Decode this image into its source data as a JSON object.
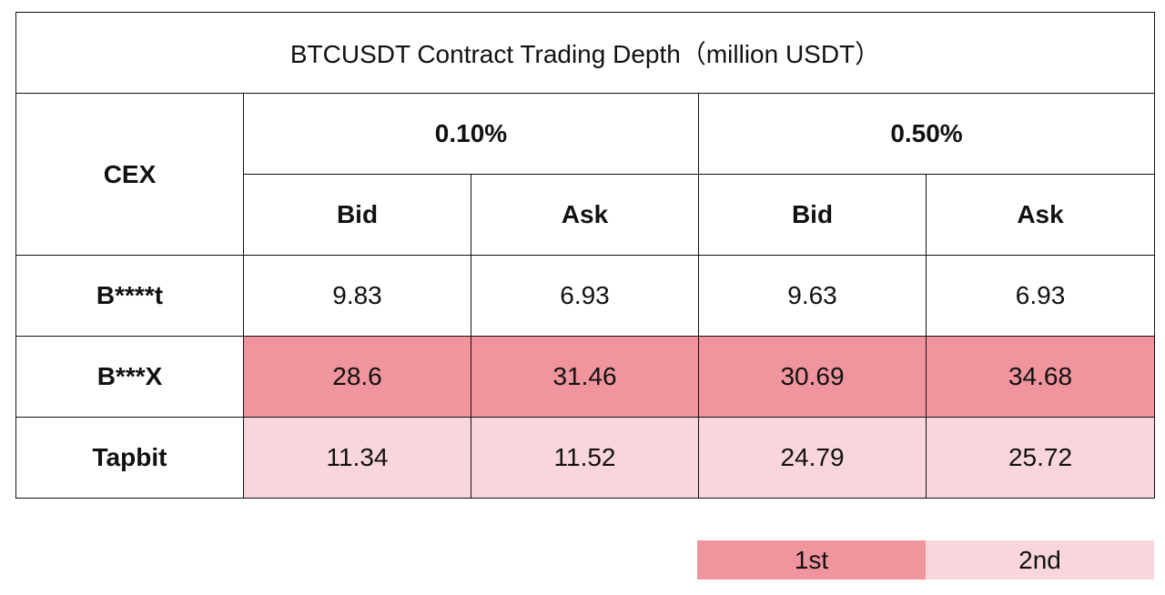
{
  "chart_data": {
    "type": "table",
    "title": "BTCUSDT Contract Trading Depth（million USDT）",
    "header": {
      "first_col": "CEX",
      "groups": [
        "0.10%",
        "0.50%"
      ],
      "subcols": [
        "Bid",
        "Ask",
        "Bid",
        "Ask"
      ]
    },
    "rows": [
      {
        "name": "B****t",
        "values": [
          "9.83",
          "6.93",
          "9.63",
          "6.93"
        ],
        "rank": ""
      },
      {
        "name": "B***X",
        "values": [
          "28.6",
          "31.46",
          "30.69",
          "34.68"
        ],
        "rank": "1st"
      },
      {
        "name": "Tapbit",
        "values": [
          "11.34",
          "11.52",
          "24.79",
          "25.72"
        ],
        "rank": "2nd"
      }
    ],
    "legend": {
      "first": "1st",
      "second": "2nd",
      "colors": {
        "first": "#f0949e",
        "second": "#f9d6dc"
      }
    }
  }
}
